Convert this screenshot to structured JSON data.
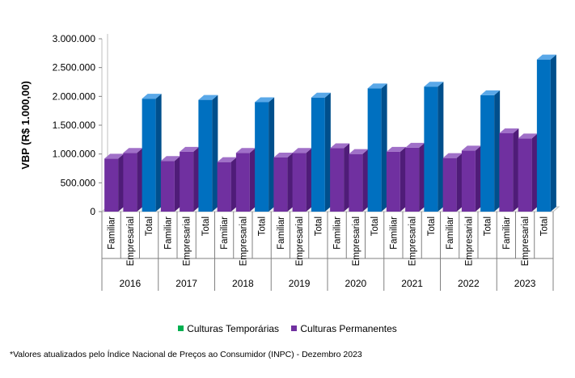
{
  "colors": {
    "bar": "#7030A0",
    "bar_side": "#4F1C78",
    "bar_top": "#A070C8",
    "total": "#0070C0",
    "total_side": "#004F8C",
    "total_top": "#5AA8E8",
    "temporarias": "#00B050",
    "permanentes": "#7030A0"
  },
  "chart_data": {
    "type": "bar",
    "ylabel": "VBP (R$ 1.000,00)",
    "ylim": [
      0,
      3000000
    ],
    "yticks": [
      "0",
      "500.000",
      "1.000.000",
      "1.500.000",
      "2.000.000",
      "2.500.000",
      "3.000.000"
    ],
    "subcategories": [
      "Familiar",
      "Empresarial",
      "Total"
    ],
    "years": [
      "2016",
      "2017",
      "2018",
      "2019",
      "2020",
      "2021",
      "2022",
      "2023"
    ],
    "values": [
      [
        920000,
        1020000,
        1960000
      ],
      [
        880000,
        1040000,
        1940000
      ],
      [
        860000,
        1020000,
        1900000
      ],
      [
        940000,
        1020000,
        1980000
      ],
      [
        1100000,
        1000000,
        2140000
      ],
      [
        1040000,
        1110000,
        2170000
      ],
      [
        930000,
        1060000,
        2020000
      ],
      [
        1360000,
        1270000,
        2640000
      ]
    ]
  },
  "legend": {
    "items": [
      {
        "label": "Culturas Temporárias",
        "color_key": "temporarias"
      },
      {
        "label": "Culturas Permanentes",
        "color_key": "permanentes"
      }
    ]
  },
  "footnote": "*Valores atualizados pelo Índice Nacional de Preços ao Consumidor (INPC) - Dezembro 2023"
}
